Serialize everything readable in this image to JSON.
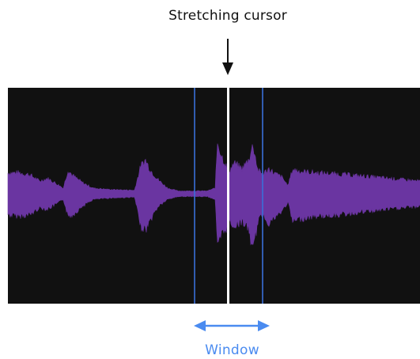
{
  "labels": {
    "cursor": "Stretching cursor",
    "window": "Window"
  },
  "colors": {
    "panel_background": "#111111",
    "waveform": "#6a35a1",
    "cursor_line": "#ffffff",
    "window_lines": "#3a6fd8",
    "window_arrow": "#4a8bf0",
    "window_label": "#4a8bf0",
    "text": "#111111"
  },
  "icons": {
    "cursor_arrow": "arrow-down-icon",
    "window_arrow": "double-arrow-horizontal-icon"
  }
}
